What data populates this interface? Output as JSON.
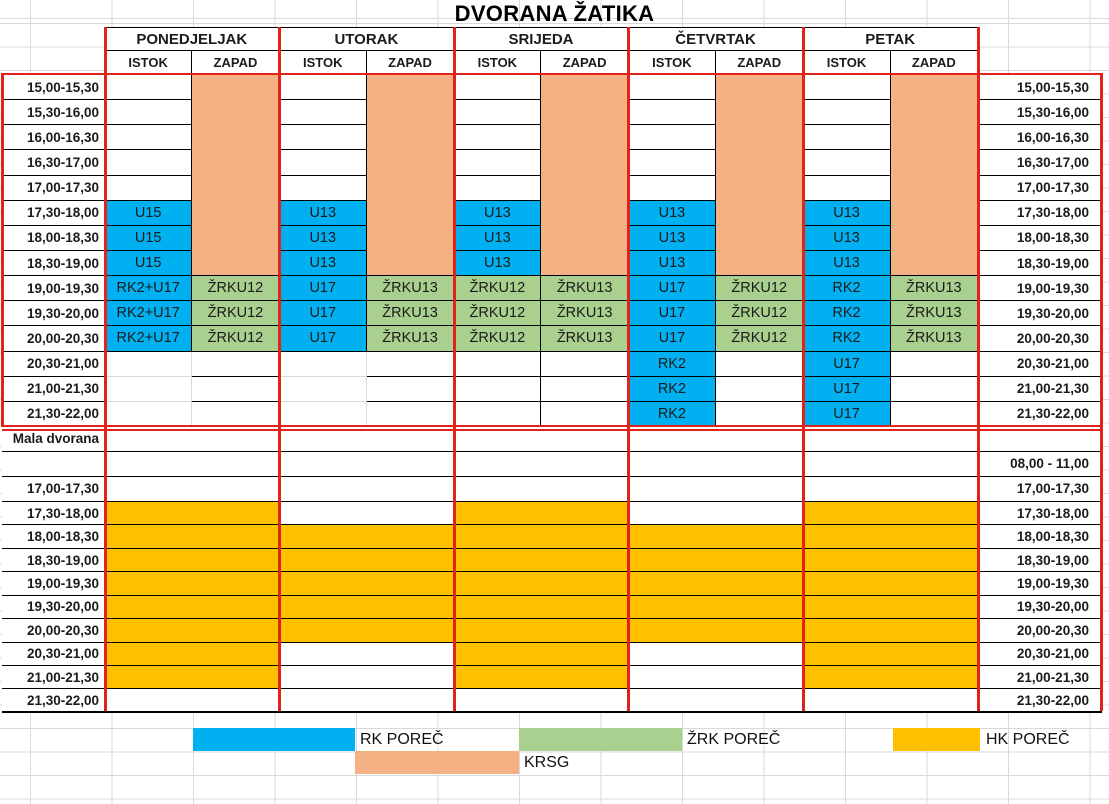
{
  "title": "DVORANA ŽATIKA",
  "main_hall": {
    "days": [
      "PONEDJELJAK",
      "UTORAK",
      "SRIJEDA",
      "ČETVRTAK",
      "PETAK"
    ],
    "courts": [
      "ISTOK",
      "ZAPAD"
    ],
    "rows": [
      {
        "time": "15,00-15,30",
        "cells": [
          [
            "",
            "w"
          ],
          [
            "",
            "s"
          ],
          [
            "",
            "w"
          ],
          [
            "",
            "s"
          ],
          [
            "",
            "w"
          ],
          [
            "",
            "s"
          ],
          [
            "",
            "w"
          ],
          [
            "",
            "s"
          ],
          [
            "",
            "w"
          ],
          [
            "",
            "s"
          ]
        ]
      },
      {
        "time": "15,30-16,00",
        "cells": [
          [
            "",
            "w"
          ],
          [
            "",
            "s"
          ],
          [
            "",
            "w"
          ],
          [
            "",
            "s"
          ],
          [
            "",
            "w"
          ],
          [
            "",
            "s"
          ],
          [
            "",
            "w"
          ],
          [
            "",
            "s"
          ],
          [
            "",
            "w"
          ],
          [
            "",
            "s"
          ]
        ]
      },
      {
        "time": "16,00-16,30",
        "cells": [
          [
            "",
            "w"
          ],
          [
            "",
            "s"
          ],
          [
            "",
            "w"
          ],
          [
            "",
            "s"
          ],
          [
            "",
            "w"
          ],
          [
            "",
            "s"
          ],
          [
            "",
            "w"
          ],
          [
            "",
            "s"
          ],
          [
            "",
            "w"
          ],
          [
            "",
            "s"
          ]
        ]
      },
      {
        "time": "16,30-17,00",
        "cells": [
          [
            "",
            "w"
          ],
          [
            "",
            "s"
          ],
          [
            "",
            "w"
          ],
          [
            "",
            "s"
          ],
          [
            "",
            "w"
          ],
          [
            "",
            "s"
          ],
          [
            "",
            "w"
          ],
          [
            "",
            "s"
          ],
          [
            "",
            "w"
          ],
          [
            "",
            "s"
          ]
        ]
      },
      {
        "time": "17,00-17,30",
        "cells": [
          [
            "",
            "w"
          ],
          [
            "",
            "s"
          ],
          [
            "",
            "w"
          ],
          [
            "",
            "s"
          ],
          [
            "",
            "w"
          ],
          [
            "",
            "s"
          ],
          [
            "",
            "w"
          ],
          [
            "",
            "s"
          ],
          [
            "",
            "w"
          ],
          [
            "",
            "s"
          ]
        ]
      },
      {
        "time": "17,30-18,00",
        "cells": [
          [
            "U15",
            "b"
          ],
          [
            "",
            "s"
          ],
          [
            "U13",
            "b"
          ],
          [
            "",
            "s"
          ],
          [
            "U13",
            "b"
          ],
          [
            "",
            "s"
          ],
          [
            "U13",
            "b"
          ],
          [
            "",
            "s"
          ],
          [
            "U13",
            "b"
          ],
          [
            "",
            "s"
          ]
        ]
      },
      {
        "time": "18,00-18,30",
        "cells": [
          [
            "U15",
            "b"
          ],
          [
            "",
            "s"
          ],
          [
            "U13",
            "b"
          ],
          [
            "",
            "s"
          ],
          [
            "U13",
            "b"
          ],
          [
            "",
            "s"
          ],
          [
            "U13",
            "b"
          ],
          [
            "",
            "s"
          ],
          [
            "U13",
            "b"
          ],
          [
            "",
            "s"
          ]
        ]
      },
      {
        "time": "18,30-19,00",
        "cells": [
          [
            "U15",
            "b"
          ],
          [
            "",
            "s"
          ],
          [
            "U13",
            "b"
          ],
          [
            "",
            "s"
          ],
          [
            "U13",
            "b"
          ],
          [
            "",
            "s"
          ],
          [
            "U13",
            "b"
          ],
          [
            "",
            "s"
          ],
          [
            "U13",
            "b"
          ],
          [
            "",
            "s"
          ]
        ]
      },
      {
        "time": "19,00-19,30",
        "cells": [
          [
            "RK2+U17",
            "b"
          ],
          [
            "ŽRKU12",
            "g"
          ],
          [
            "U17",
            "b"
          ],
          [
            "ŽRKU13",
            "g"
          ],
          [
            "ŽRKU12",
            "g"
          ],
          [
            "ŽRKU13",
            "g"
          ],
          [
            "U17",
            "b"
          ],
          [
            "ŽRKU12",
            "g"
          ],
          [
            "RK2",
            "b"
          ],
          [
            "ŽRKU13",
            "g"
          ]
        ]
      },
      {
        "time": "19,30-20,00",
        "cells": [
          [
            "RK2+U17",
            "b"
          ],
          [
            "ŽRKU12",
            "g"
          ],
          [
            "U17",
            "b"
          ],
          [
            "ŽRKU13",
            "g"
          ],
          [
            "ŽRKU12",
            "g"
          ],
          [
            "ŽRKU13",
            "g"
          ],
          [
            "U17",
            "b"
          ],
          [
            "ŽRKU12",
            "g"
          ],
          [
            "RK2",
            "b"
          ],
          [
            "ŽRKU13",
            "g"
          ]
        ]
      },
      {
        "time": "20,00-20,30",
        "cells": [
          [
            "RK2+U17",
            "b"
          ],
          [
            "ŽRKU12",
            "g"
          ],
          [
            "U17",
            "b"
          ],
          [
            "ŽRKU13",
            "g"
          ],
          [
            "ŽRKU12",
            "g"
          ],
          [
            "ŽRKU13",
            "g"
          ],
          [
            "U17",
            "b"
          ],
          [
            "ŽRKU12",
            "g"
          ],
          [
            "RK2",
            "b"
          ],
          [
            "ŽRKU13",
            "g"
          ]
        ]
      },
      {
        "time": "20,30-21,00",
        "cells": [
          [
            "",
            "n"
          ],
          [
            "",
            "w"
          ],
          [
            "",
            "n"
          ],
          [
            "",
            "w"
          ],
          [
            "",
            "w"
          ],
          [
            "",
            "w"
          ],
          [
            "RK2",
            "b"
          ],
          [
            "",
            "w"
          ],
          [
            "U17",
            "b"
          ],
          [
            "",
            "w"
          ]
        ]
      },
      {
        "time": "21,00-21,30",
        "cells": [
          [
            "",
            "n"
          ],
          [
            "",
            "w"
          ],
          [
            "",
            "n"
          ],
          [
            "",
            "w"
          ],
          [
            "",
            "w"
          ],
          [
            "",
            "w"
          ],
          [
            "RK2",
            "b"
          ],
          [
            "",
            "w"
          ],
          [
            "U17",
            "b"
          ],
          [
            "",
            "w"
          ]
        ]
      },
      {
        "time": "21,30-22,00",
        "cells": [
          [
            "",
            "n"
          ],
          [
            "",
            "w"
          ],
          [
            "",
            "n"
          ],
          [
            "",
            "w"
          ],
          [
            "",
            "w"
          ],
          [
            "",
            "w"
          ],
          [
            "RK2",
            "b"
          ],
          [
            "",
            "w"
          ],
          [
            "U17",
            "b"
          ],
          [
            "",
            "w"
          ]
        ]
      }
    ]
  },
  "small_hall": {
    "rows": [
      {
        "left": "Mala dvorana",
        "right": "",
        "cells": [
          "w",
          "w",
          "w",
          "w",
          "w"
        ]
      },
      {
        "left": "",
        "right": "08,00 - 11,00",
        "cells": [
          "w",
          "w",
          "w",
          "w",
          "w"
        ]
      },
      {
        "left": "17,00-17,30",
        "right": "17,00-17,30",
        "cells": [
          "w",
          "w",
          "w",
          "w",
          "w"
        ]
      },
      {
        "left": "17,30-18,00",
        "right": "17,30-18,00",
        "cells": [
          "y",
          "w",
          "y",
          "w",
          "y"
        ]
      },
      {
        "left": "18,00-18,30",
        "right": "18,00-18,30",
        "cells": [
          "y",
          "y",
          "y",
          "y",
          "y"
        ]
      },
      {
        "left": "18,30-19,00",
        "right": "18,30-19,00",
        "cells": [
          "y",
          "y",
          "y",
          "y",
          "y"
        ]
      },
      {
        "left": "19,00-19,30",
        "right": "19,00-19,30",
        "cells": [
          "y",
          "y",
          "y",
          "y",
          "y"
        ]
      },
      {
        "left": "19,30-20,00",
        "right": "19,30-20,00",
        "cells": [
          "y",
          "y",
          "y",
          "y",
          "y"
        ]
      },
      {
        "left": "20,00-20,30",
        "right": "20,00-20,30",
        "cells": [
          "y",
          "y",
          "y",
          "y",
          "y"
        ]
      },
      {
        "left": "20,30-21,00",
        "right": "20,30-21,00",
        "cells": [
          "y",
          "w",
          "y",
          "w",
          "y"
        ]
      },
      {
        "left": "21,00-21,30",
        "right": "21,00-21,30",
        "cells": [
          "y",
          "w",
          "y",
          "w",
          "y"
        ]
      },
      {
        "left": "21,30-22,00",
        "right": "21,30-22,00",
        "cells": [
          "w",
          "w",
          "w",
          "w",
          "w"
        ]
      }
    ]
  },
  "legend": {
    "items": [
      {
        "label": "RK POREČ",
        "color": "blue"
      },
      {
        "label": "ŽRK POREČ",
        "color": "green"
      },
      {
        "label": "HK POREČ",
        "color": "yellow"
      },
      {
        "label": "KRSG",
        "color": "salmon"
      }
    ]
  },
  "colors": {
    "blue": "#00B0F0",
    "green": "#A9D08E",
    "salmon": "#F4B183",
    "yellow": "#FFC000",
    "red": "#E2231A",
    "grid": "#D9D9D9"
  }
}
